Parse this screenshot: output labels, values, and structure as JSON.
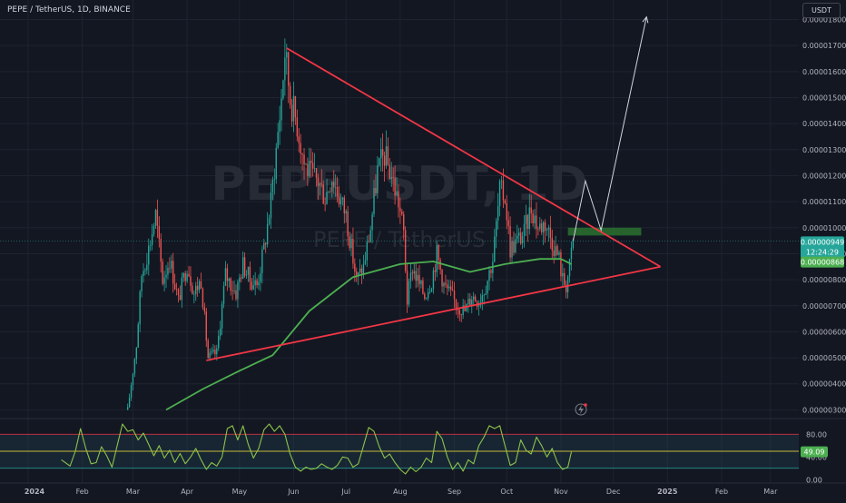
{
  "header": {
    "symbol_line": "PEPE / TetherUS, 1D, BINANCE",
    "currency_button": "USDT",
    "watermark_ticker": "PEPEUSDT, 1D",
    "watermark_name": "PEPE / TetherUS"
  },
  "colors": {
    "background": "#131722",
    "candle_up": "#26a69a",
    "candle_down": "#ef5350",
    "moving_average": "#4caf50",
    "triangle": "#f23645",
    "arrow": "#d1d4dc",
    "resistance_zone": "#2e7d32",
    "oscillator": "#8bc34a",
    "osc_upper": "#f23645",
    "osc_mid": "#ffeb3b",
    "osc_lower": "#26a69a",
    "osc_band": "#1e3a4c"
  },
  "chart_data": [
    {
      "type": "candlestick",
      "x_axis_labels": [
        "2024",
        "Feb",
        "Mar",
        "Apr",
        "May",
        "Jun",
        "Jul",
        "Aug",
        "Sep",
        "Oct",
        "Nov",
        "Dec",
        "2025",
        "Feb",
        "Mar"
      ],
      "y_axis_labels": [
        "0.00001800",
        "0.00001700",
        "0.00001600",
        "0.00001500",
        "0.00001400",
        "0.00001300",
        "0.00001200",
        "0.00001100",
        "0.00001000",
        "0.00000900",
        "0.00000800",
        "0.00000700",
        "0.00000600",
        "0.00000500",
        "0.00000400",
        "0.00000300"
      ],
      "ylim": [
        2.7e-06,
        1.875e-05
      ],
      "price_axis_labels": {
        "last_price": "0.00000949",
        "countdown": "12:24:29",
        "moving_average_value": "0.00000868"
      },
      "close_path": [
        [
          "2024-02-27",
          3e-06
        ],
        [
          "2024-03-03",
          5.5e-06
        ],
        [
          "2024-03-06",
          8.2e-06
        ],
        [
          "2024-03-10",
          9.2e-06
        ],
        [
          "2024-03-14",
          1.05e-05
        ],
        [
          "2024-03-18",
          8e-06
        ],
        [
          "2024-03-22",
          8.8e-06
        ],
        [
          "2024-03-27",
          7.2e-06
        ],
        [
          "2024-04-01",
          8.6e-06
        ],
        [
          "2024-04-05",
          7.5e-06
        ],
        [
          "2024-04-09",
          8e-06
        ],
        [
          "2024-04-13",
          5e-06
        ],
        [
          "2024-04-18",
          5.2e-06
        ],
        [
          "2024-04-23",
          8.2e-06
        ],
        [
          "2024-04-29",
          7.5e-06
        ],
        [
          "2024-05-03",
          8.6e-06
        ],
        [
          "2024-05-07",
          8e-06
        ],
        [
          "2024-05-11",
          7.8e-06
        ],
        [
          "2024-05-15",
          9.2e-06
        ],
        [
          "2024-05-19",
          1.1e-05
        ],
        [
          "2024-05-22",
          1.3e-05
        ],
        [
          "2024-05-25",
          1.5e-05
        ],
        [
          "2024-05-27",
          1.68e-05
        ],
        [
          "2024-05-30",
          1.5e-05
        ],
        [
          "2024-06-03",
          1.4e-05
        ],
        [
          "2024-06-07",
          1.25e-05
        ],
        [
          "2024-06-11",
          1.2e-05
        ],
        [
          "2024-06-15",
          1.18e-05
        ],
        [
          "2024-06-19",
          1.12e-05
        ],
        [
          "2024-06-23",
          1.2e-05
        ],
        [
          "2024-06-27",
          1.12e-05
        ],
        [
          "2024-07-01",
          1.05e-05
        ],
        [
          "2024-07-04",
          9.2e-06
        ],
        [
          "2024-07-07",
          8e-06
        ],
        [
          "2024-07-11",
          8.5e-06
        ],
        [
          "2024-07-15",
          1e-05
        ],
        [
          "2024-07-19",
          1.22e-05
        ],
        [
          "2024-07-23",
          1.28e-05
        ],
        [
          "2024-07-27",
          1.2e-05
        ],
        [
          "2024-07-31",
          1.1e-05
        ],
        [
          "2024-08-03",
          9.8e-06
        ],
        [
          "2024-08-05",
          7.2e-06
        ],
        [
          "2024-08-08",
          8.5e-06
        ],
        [
          "2024-08-12",
          7.8e-06
        ],
        [
          "2024-08-15",
          7.4e-06
        ],
        [
          "2024-08-19",
          8e-06
        ],
        [
          "2024-08-22",
          9e-06
        ],
        [
          "2024-08-26",
          7.8e-06
        ],
        [
          "2024-08-30",
          7.4e-06
        ],
        [
          "2024-09-03",
          7e-06
        ],
        [
          "2024-09-07",
          6.8e-06
        ],
        [
          "2024-09-11",
          7.4e-06
        ],
        [
          "2024-09-15",
          7.2e-06
        ],
        [
          "2024-09-19",
          7.8e-06
        ],
        [
          "2024-09-23",
          8.8e-06
        ],
        [
          "2024-09-27",
          1.14e-05
        ],
        [
          "2024-09-30",
          1.12e-05
        ],
        [
          "2024-10-03",
          9.2e-06
        ],
        [
          "2024-10-07",
          9.5e-06
        ],
        [
          "2024-10-11",
          9.8e-06
        ],
        [
          "2024-10-15",
          1.08e-05
        ],
        [
          "2024-10-19",
          1e-05
        ],
        [
          "2024-10-23",
          1.02e-05
        ],
        [
          "2024-10-27",
          9.5e-06
        ],
        [
          "2024-10-31",
          8.8e-06
        ],
        [
          "2024-11-02",
          8e-06
        ],
        [
          "2024-11-04",
          7.8e-06
        ],
        [
          "2024-11-06",
          8.5e-06
        ],
        [
          "2024-11-08",
          9.5e-06
        ]
      ],
      "moving_average_path": [
        [
          "2024-03-20",
          3e-06
        ],
        [
          "2024-04-10",
          3.8e-06
        ],
        [
          "2024-05-01",
          4.5e-06
        ],
        [
          "2024-05-20",
          5.1e-06
        ],
        [
          "2024-06-10",
          6.8e-06
        ],
        [
          "2024-07-05",
          8.1e-06
        ],
        [
          "2024-08-01",
          8.6e-06
        ],
        [
          "2024-08-20",
          8.7e-06
        ],
        [
          "2024-09-10",
          8.3e-06
        ],
        [
          "2024-09-30",
          8.6e-06
        ],
        [
          "2024-10-20",
          8.8e-06
        ],
        [
          "2024-11-01",
          8.8e-06
        ],
        [
          "2024-11-07",
          8.6e-06
        ]
      ],
      "drawings": {
        "triangle_upper": [
          [
            "2024-05-28",
            1.69e-05
          ],
          [
            "2024-12-28",
            8.5e-06
          ]
        ],
        "triangle_lower": [
          [
            "2024-04-12",
            4.9e-06
          ],
          [
            "2024-12-28",
            8.5e-06
          ]
        ],
        "projection_arrow": [
          [
            "2024-11-08",
            9.5e-06
          ],
          [
            "2024-11-15",
            1.18e-05
          ],
          [
            "2024-11-24",
            9.9e-06
          ],
          [
            "2024-12-20",
            1.81e-05
          ]
        ],
        "resistance_zone": [
          [
            "2024-11-05",
            9.7e-06
          ],
          [
            "2024-12-17",
            1e-05
          ]
        ]
      }
    },
    {
      "type": "line",
      "name": "oscillator",
      "y_axis_labels": [
        "80.00",
        "40.00",
        "0.00"
      ],
      "ylim": [
        -6,
        106
      ],
      "levels": [
        80,
        50,
        20
      ],
      "current_value": "49.09",
      "values": [
        [
          "2024-01-20",
          35
        ],
        [
          "2024-01-25",
          24
        ],
        [
          "2024-01-28",
          50
        ],
        [
          "2024-01-31",
          90
        ],
        [
          "2024-02-03",
          55
        ],
        [
          "2024-02-06",
          28
        ],
        [
          "2024-02-09",
          30
        ],
        [
          "2024-02-12",
          58
        ],
        [
          "2024-02-15",
          42
        ],
        [
          "2024-02-18",
          22
        ],
        [
          "2024-02-21",
          60
        ],
        [
          "2024-02-24",
          98
        ],
        [
          "2024-02-27",
          85
        ],
        [
          "2024-03-01",
          88
        ],
        [
          "2024-03-04",
          70
        ],
        [
          "2024-03-07",
          82
        ],
        [
          "2024-03-10",
          62
        ],
        [
          "2024-03-13",
          42
        ],
        [
          "2024-03-16",
          60
        ],
        [
          "2024-03-19",
          38
        ],
        [
          "2024-03-22",
          52
        ],
        [
          "2024-03-25",
          30
        ],
        [
          "2024-03-28",
          46
        ],
        [
          "2024-03-31",
          28
        ],
        [
          "2024-04-03",
          40
        ],
        [
          "2024-04-06",
          55
        ],
        [
          "2024-04-09",
          35
        ],
        [
          "2024-04-12",
          18
        ],
        [
          "2024-04-15",
          30
        ],
        [
          "2024-04-18",
          24
        ],
        [
          "2024-04-21",
          40
        ],
        [
          "2024-04-24",
          90
        ],
        [
          "2024-04-27",
          95
        ],
        [
          "2024-04-30",
          70
        ],
        [
          "2024-05-03",
          95
        ],
        [
          "2024-05-06",
          62
        ],
        [
          "2024-05-09",
          38
        ],
        [
          "2024-05-12",
          55
        ],
        [
          "2024-05-15",
          88
        ],
        [
          "2024-05-18",
          98
        ],
        [
          "2024-05-21",
          85
        ],
        [
          "2024-05-24",
          95
        ],
        [
          "2024-05-27",
          80
        ],
        [
          "2024-05-30",
          45
        ],
        [
          "2024-06-02",
          22
        ],
        [
          "2024-06-05",
          15
        ],
        [
          "2024-06-08",
          22
        ],
        [
          "2024-06-11",
          18
        ],
        [
          "2024-06-14",
          20
        ],
        [
          "2024-06-17",
          28
        ],
        [
          "2024-06-20",
          22
        ],
        [
          "2024-06-23",
          18
        ],
        [
          "2024-06-26",
          25
        ],
        [
          "2024-06-29",
          40
        ],
        [
          "2024-07-02",
          38
        ],
        [
          "2024-07-05",
          22
        ],
        [
          "2024-07-08",
          28
        ],
        [
          "2024-07-11",
          60
        ],
        [
          "2024-07-14",
          92
        ],
        [
          "2024-07-17",
          85
        ],
        [
          "2024-07-20",
          58
        ],
        [
          "2024-07-23",
          38
        ],
        [
          "2024-07-26",
          45
        ],
        [
          "2024-07-29",
          30
        ],
        [
          "2024-08-01",
          18
        ],
        [
          "2024-08-04",
          10
        ],
        [
          "2024-08-07",
          22
        ],
        [
          "2024-08-10",
          14
        ],
        [
          "2024-08-13",
          22
        ],
        [
          "2024-08-16",
          38
        ],
        [
          "2024-08-19",
          30
        ],
        [
          "2024-08-22",
          85
        ],
        [
          "2024-08-25",
          72
        ],
        [
          "2024-08-28",
          40
        ],
        [
          "2024-08-31",
          18
        ],
        [
          "2024-09-03",
          30
        ],
        [
          "2024-09-06",
          15
        ],
        [
          "2024-09-09",
          35
        ],
        [
          "2024-09-12",
          28
        ],
        [
          "2024-09-15",
          60
        ],
        [
          "2024-09-18",
          75
        ],
        [
          "2024-09-21",
          95
        ],
        [
          "2024-09-24",
          90
        ],
        [
          "2024-09-27",
          95
        ],
        [
          "2024-09-30",
          60
        ],
        [
          "2024-10-03",
          25
        ],
        [
          "2024-10-06",
          30
        ],
        [
          "2024-10-09",
          70
        ],
        [
          "2024-10-12",
          52
        ],
        [
          "2024-10-15",
          45
        ],
        [
          "2024-10-18",
          75
        ],
        [
          "2024-10-21",
          60
        ],
        [
          "2024-10-24",
          40
        ],
        [
          "2024-10-27",
          55
        ],
        [
          "2024-10-30",
          30
        ],
        [
          "2024-11-02",
          18
        ],
        [
          "2024-11-05",
          22
        ],
        [
          "2024-11-07",
          49
        ]
      ]
    }
  ]
}
